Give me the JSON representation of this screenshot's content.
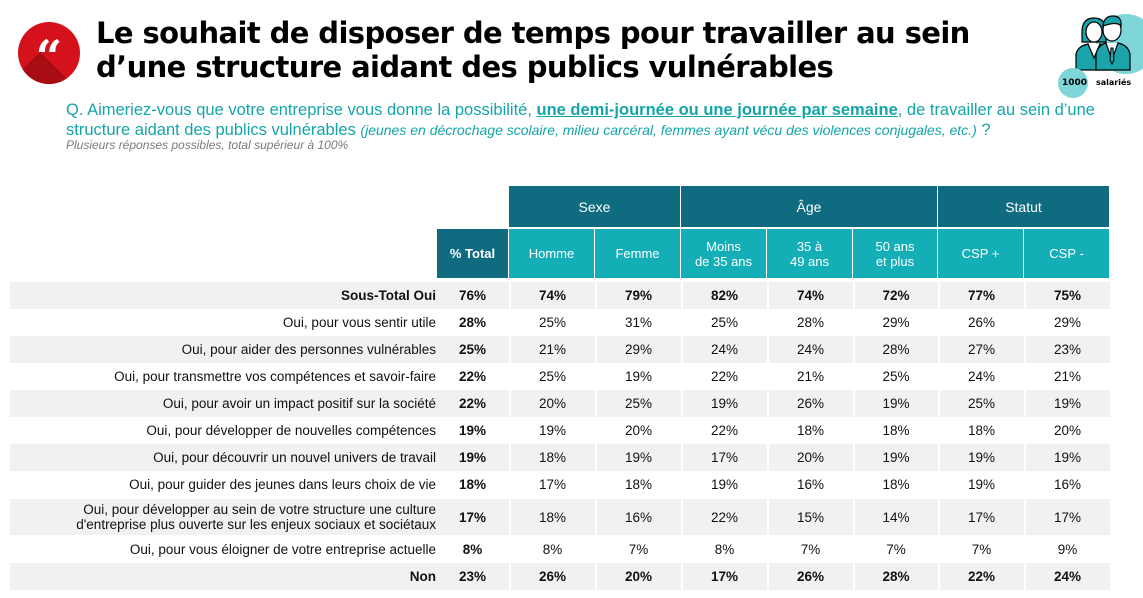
{
  "header": {
    "quote_icon": "quote-icon",
    "title_line1": "Le souhait de disposer de temps pour travailler au sein",
    "title_line2": "d’une structure aidant des publics vulnérables",
    "sample": {
      "icon": "people-icon",
      "count": "1000",
      "unit": "salariés"
    }
  },
  "question": {
    "prefix": "Q. Aimeriez-vous que votre entreprise vous donne la possibilité, ",
    "emphasis": "une demi-journée ou une journée par semaine",
    "middle": ", de travailler au sein d’une structure aidant des publics vulnérables ",
    "examples": "(jeunes en décrochage scolaire, milieu carcéral, femmes ayant vécu des violences conjugales, etc.)",
    "suffix": " ?",
    "note": "Plusieurs réponses possibles, total supérieur à 100%"
  },
  "table": {
    "groups": [
      "Sexe",
      "Âge",
      "Statut"
    ],
    "columns": [
      "% Total",
      "Homme",
      "Femme",
      "Moins de 35 ans",
      "35 à 49 ans",
      "50 ans et plus",
      "CSP +",
      "CSP -"
    ],
    "columns_lines": [
      [
        "% Total"
      ],
      [
        "Homme"
      ],
      [
        "Femme"
      ],
      [
        "Moins",
        "de 35 ans"
      ],
      [
        "35 à",
        "49 ans"
      ],
      [
        "50 ans",
        "et plus"
      ],
      [
        "CSP +"
      ],
      [
        "CSP -"
      ]
    ],
    "rows": [
      {
        "label": "Sous-Total Oui",
        "values": [
          "76%",
          "74%",
          "79%",
          "82%",
          "74%",
          "72%",
          "77%",
          "75%"
        ]
      },
      {
        "label": "Oui, pour vous sentir utile",
        "values": [
          "28%",
          "25%",
          "31%",
          "25%",
          "28%",
          "29%",
          "26%",
          "29%"
        ]
      },
      {
        "label": "Oui, pour aider des personnes vulnérables",
        "values": [
          "25%",
          "21%",
          "29%",
          "24%",
          "24%",
          "28%",
          "27%",
          "23%"
        ]
      },
      {
        "label": "Oui, pour transmettre vos compétences et savoir-faire",
        "values": [
          "22%",
          "25%",
          "19%",
          "22%",
          "21%",
          "25%",
          "24%",
          "21%"
        ]
      },
      {
        "label": "Oui, pour avoir un impact positif sur la société",
        "values": [
          "22%",
          "20%",
          "25%",
          "19%",
          "26%",
          "19%",
          "25%",
          "19%"
        ]
      },
      {
        "label": "Oui, pour développer de nouvelles compétences",
        "values": [
          "19%",
          "19%",
          "20%",
          "22%",
          "18%",
          "18%",
          "18%",
          "20%"
        ]
      },
      {
        "label": "Oui, pour découvrir un nouvel univers de travail",
        "values": [
          "19%",
          "18%",
          "19%",
          "17%",
          "20%",
          "19%",
          "19%",
          "19%"
        ]
      },
      {
        "label": "Oui, pour guider des jeunes dans leurs choix de vie",
        "values": [
          "18%",
          "17%",
          "18%",
          "19%",
          "16%",
          "18%",
          "19%",
          "16%"
        ]
      },
      {
        "label": "Oui, pour développer au sein de votre structure une culture d'entreprise plus ouverte sur les enjeux sociaux et sociétaux",
        "label_lines": [
          "Oui, pour développer au sein de votre structure une culture",
          "d'entreprise plus ouverte sur les enjeux sociaux et sociétaux"
        ],
        "values": [
          "17%",
          "18%",
          "16%",
          "22%",
          "15%",
          "14%",
          "17%",
          "17%"
        ]
      },
      {
        "label": "Oui, pour vous éloigner de votre entreprise actuelle",
        "values": [
          "8%",
          "8%",
          "7%",
          "8%",
          "7%",
          "7%",
          "7%",
          "9%"
        ]
      },
      {
        "label": "Non",
        "values": [
          "23%",
          "26%",
          "20%",
          "17%",
          "26%",
          "28%",
          "22%",
          "24%"
        ]
      }
    ]
  },
  "colors": {
    "accent_dark": "#0e6b80",
    "accent_light": "#14afb6",
    "question_text": "#14a5a9",
    "quote_red": "#d5121b",
    "row_shade": "#f1f1f1"
  }
}
